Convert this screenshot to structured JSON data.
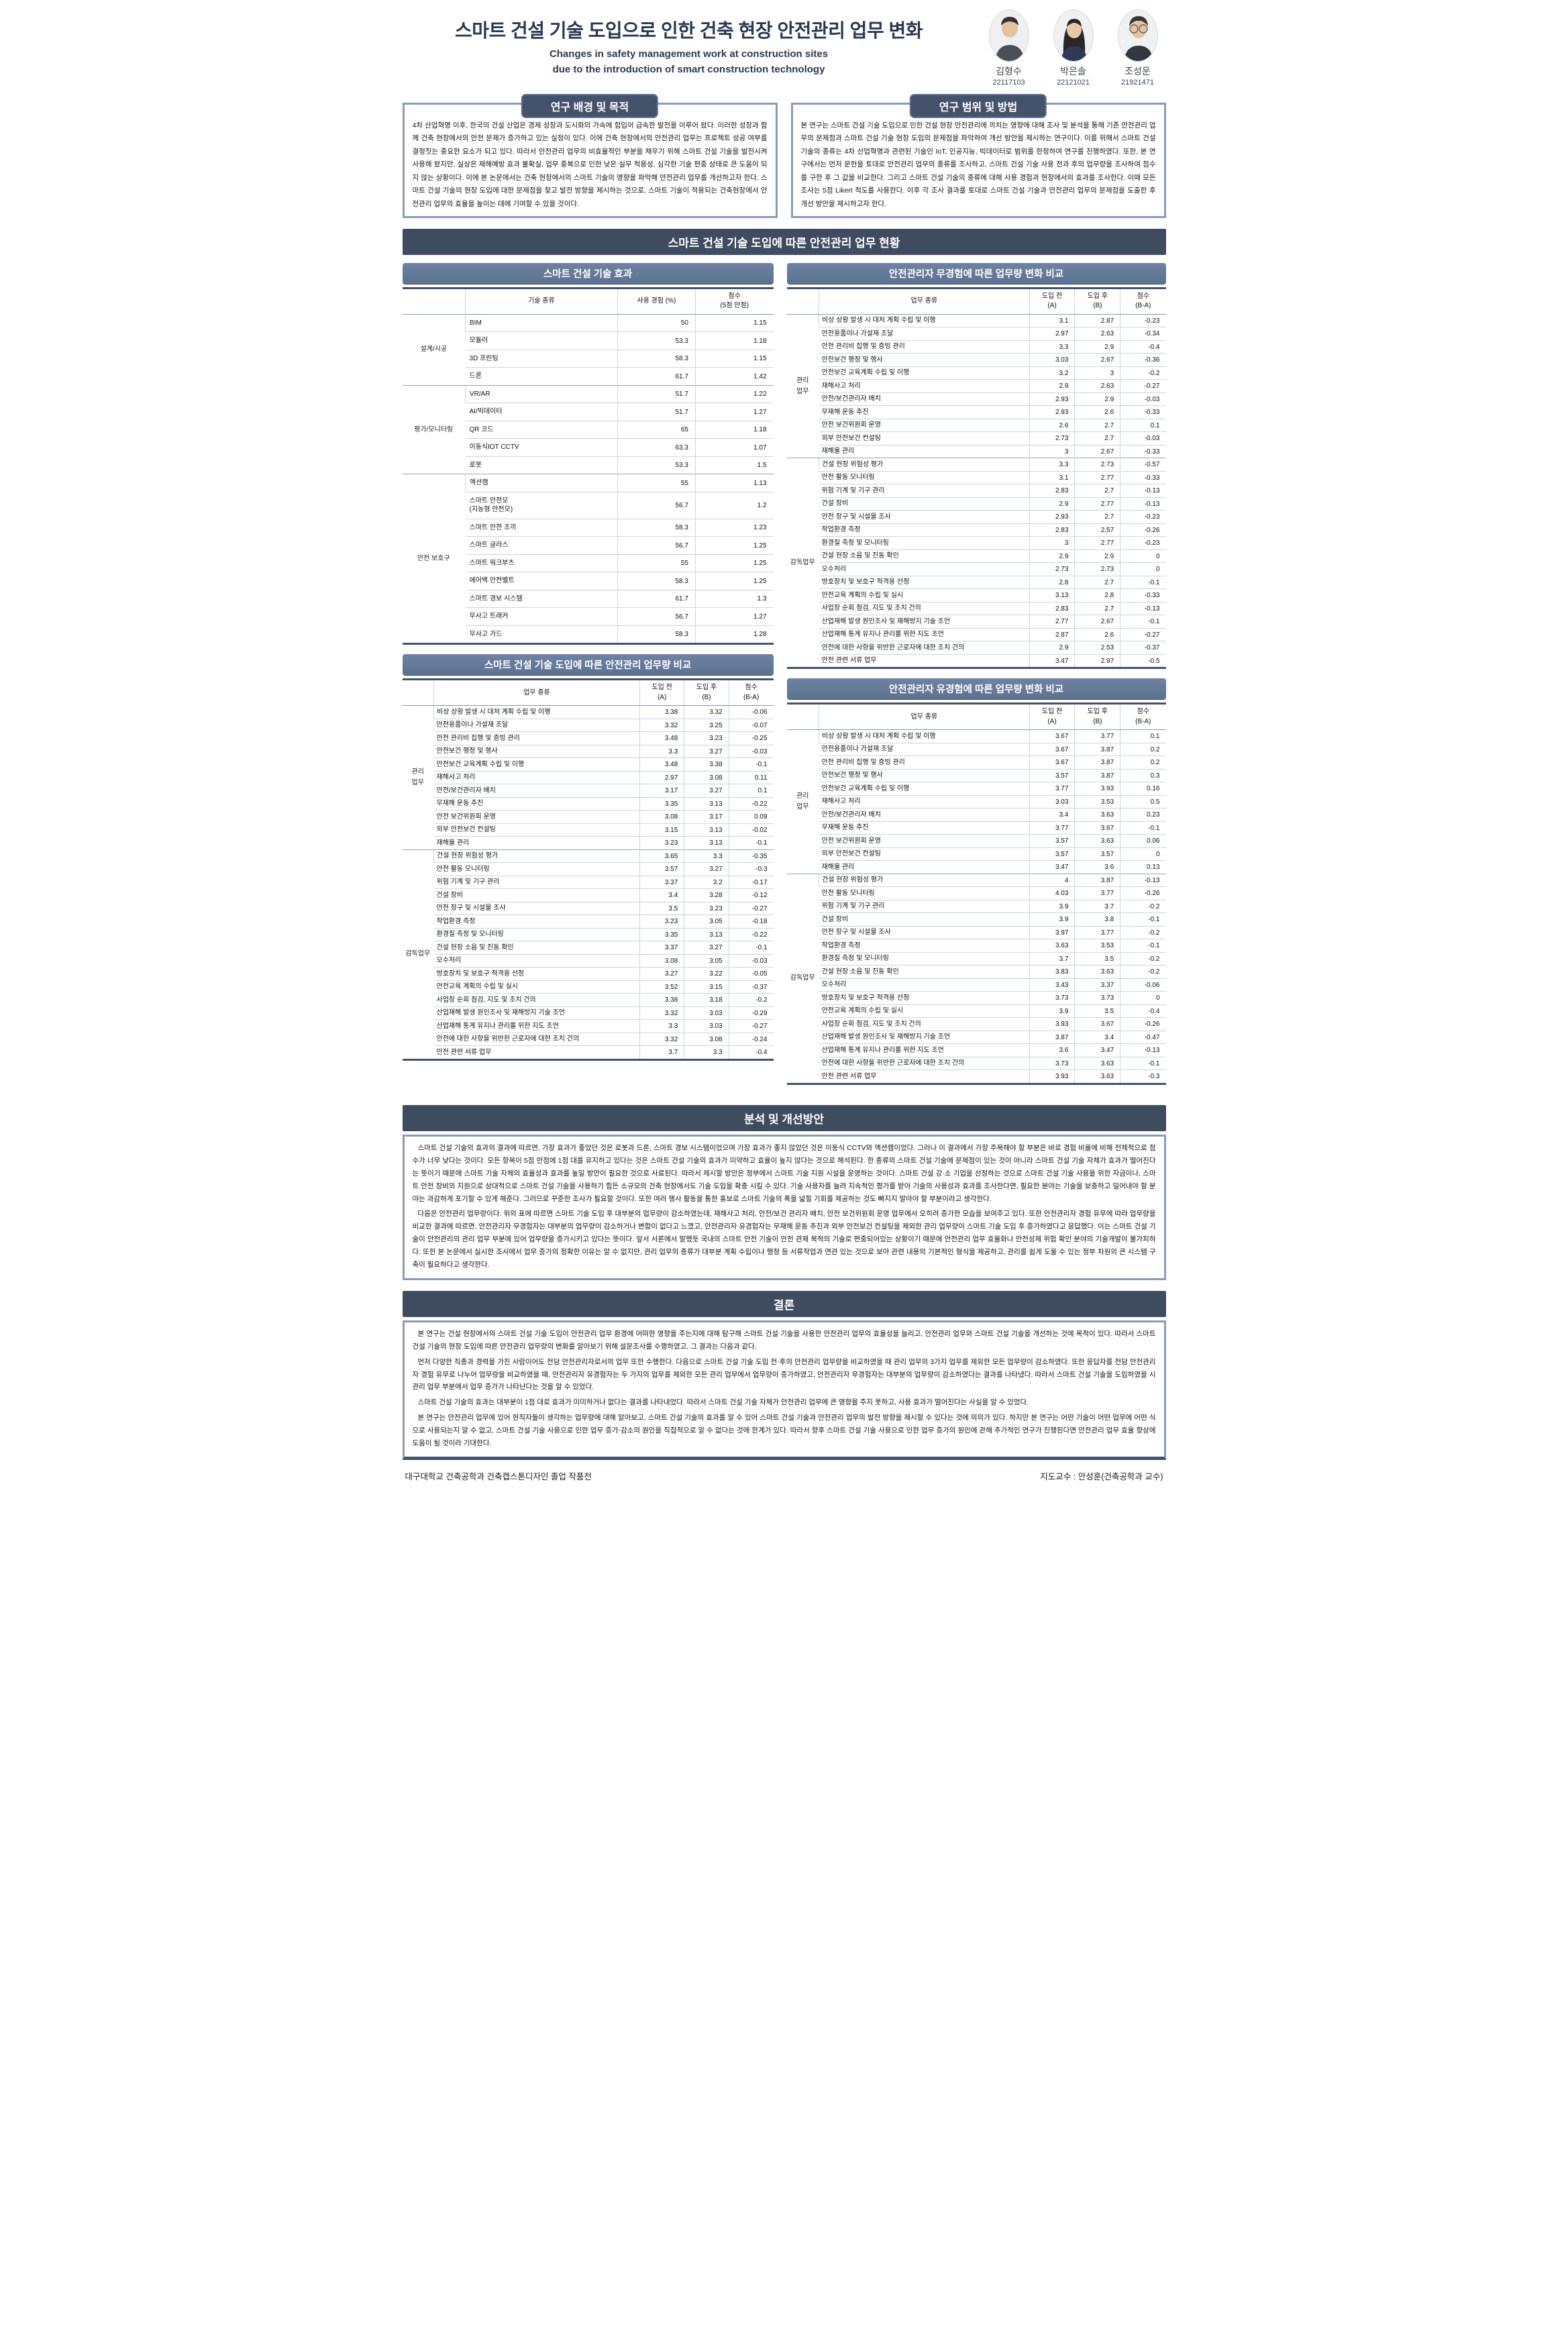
{
  "colors": {
    "banner_bg": "#3f4c60",
    "table_title_bg": "#5d7191",
    "tab_bg": "#44536b",
    "box_border": "#8a9cb5",
    "thick_line": "#44536b",
    "row_line": "#ccd5df",
    "title_text": "#2b3a50"
  },
  "header": {
    "title_ko": "스마트 건설 기술 도입으로 인한 건축 현장 안전관리 업무 변화",
    "title_en_line1": "Changes in safety management work at construction sites",
    "title_en_line2": "due to the introduction of smart construction technology",
    "authors": [
      {
        "name": "김형수",
        "id": "22117103"
      },
      {
        "name": "박은솔",
        "id": "22121021"
      },
      {
        "name": "조성운",
        "id": "21921471"
      }
    ]
  },
  "sections": {
    "background": {
      "title": "연구 배경 및 목적",
      "body": "4차 산업혁명 이후, 한국의 건설 산업은 경제 성장과 도시화의 가속에 힘입어 급속한 발전을 이루어 왔다. 이러한 성장과 함께 건축 현장에서의 안전 문제가 증가하고 있는 실정이 있다. 이에 건축 현장에서의 안전관리 업무는 프로젝트 성공 여부를 결정짓는 중요한 요소가 되고 있다. 따라서 안전관리 업무의 비효율적인 부분을 채우기 위해 스마트 건설 기술을 발전시켜 사용해 왔지만, 실상은 재해예방 효과 불확실, 업무 중복으로 인한 낮은 실무 적용성, 심각한 기술 편중 상태로 큰 도움이 되지 않는 상황이다. 이에 본 논문에서는 건축 현장에서의 스마트 기술의 영향을 파악해 안전관리 업무를 개선하고자 한다. 스마트 건설 기술의 현장 도입에 대한 문제점을 찾고 발전 방향을 제시하는 것으로, 스마트 기술이 적용되는 건축현장에서 안전관리 업무의 효율을 높이는 데에 기여할 수 있을 것이다."
    },
    "scope": {
      "title": "연구 범위 및 방법",
      "body": "본 연구는 스마트 건설 기술 도입으로 인한 건설 현장 안전관리에 끼치는 영향에 대해 조사 및 분석을 통해 기존 안전관리 업무의 문제점과 스마트 건설 기술 현장 도입의 문제점을 파악하여 개선 방안을 제시하는 연구이다. 이를 위해서 스마트 건설 기술의 종류는 4차 산업혁명과 관련된 기술인 IoT, 인공지능, 빅데이터로 범위를 한정하여 연구를 진행하였다. 또한, 본 연구에서는 먼저 문헌을 토대로 안전관리 업무의 종류를 조사하고, 스마트 건설 기술 사용 전과 후의 업무량을 조사하여 점수를 구한 후 그 값을 비교한다. 그리고 스마트 건설 기술의 종류에 대해 사용 경험과 현장에서의 효과를 조사한다. 이때 모든 조사는 5점 Likert 척도를 사용한다. 이후 각 조사 결과를 토대로 스마트 건설 기술과 안전관리 업무의 문제점을 도출한 후 개선 방안을 제시하고자 한다."
    },
    "status_banner": "스마트 건설 기술 도입에 따른 안전관리 업무 현황",
    "analysis": {
      "title": "분석 및 개선방안",
      "paragraphs": [
        "스마트 건설 기술의 효과의 결과에 따르면, 가장 효과가 좋았던 것은 로봇과 드론, 스마트 경보 시스템이었으며 가장 효과가 좋지 않았던 것은 이동식 CCTV와 액션캠이었다. 그러나 이 결과에서 가장 주목해야 할 부분은 바로 경험 비율에 비해 전체적으로 점수가 너무 낮다는 것이다. 모든 항목이 5점 만점에 1점 대를 유지하고 있다는 것은 스마트 건설 기술의 효과가 미약하고 효율이 높지 않다는 것으로 해석된다. 한 종류의 스마트 건설 기술에 문제점이 있는 것이 아니라 스마트 건설 기술 자체가 효과가 떨어진다는 뜻이기 때문에 스마트 기술 자체의 효율성과 효과를 높일 방안이 필요한 것으로 사료된다. 따라서 제시할 방안은 정부에서 스마트 기술 지원 시설을 운영하는 것이다. 스마트 건설 강·소 기업을 선정하는 것으로 스마트 건설 기술 사용을 위한 자금이나, 스마트 안전 장비의 지원으로 상대적으로 스마트 건설 기술을 사용하기 힘든 소규모의 건축 현장에서도 기술 도입을 확충 시킬 수 있다. 기술 사용자를 늘려 지속적인 평가를 받아 기술의 사용성과 효과를 조사한다면, 필요한 분야는 기술을 보충하고 덜어내야 할 분야는 과감하게 포기할 수 있게 해준다. 그러므로 꾸준한 조사가 필요할 것이다. 또한 여러 행사 활동을 통한 홍보로 스마트 기술의 폭을 넓힐 기회를 제공하는 것도 빠지지 말아야 할 부분이라고 생각한다.",
        "다음은 안전관리 업무량이다. 위의 표에 따르면 스마트 기술 도입 후 대부분의 업무량이 감소하였는데, 재해사고 처리, 안전/보건 관리자 배치, 안전 보건위원회 운영 업무에서 오히려 증가한 모습을 보여주고 있다. 또한 안전관리자 경험 유무에 따라 업무량을 비교한 결과에 따르면, 안전관리자 무경험자는 대부분의 업무량이 감소하거나 변함이 없다고 느꼈고, 안전관리자 유경험자는 무재해 운동 추진과 외부 안전보건 컨설팅을 제외한 관리 업무량이 스마트 기술 도입 후 증가하였다고 응답했다. 이는 스마트 건설 기술이 안전관리의 관리 업무 부분에 있어 업무량을 증가시키고 있다는 뜻이다. 앞서 서론에서 말했듯 국내의 스마트 안전 기술이 안전 관제 목적의 기술로 편중되어있는 상황이기 때문에 안전관리 업무 효율화나 안전성제 위험 확인 분야의 기술개발이 불가피하다. 또한 본 논문에서 실시한 조사에서 업무 증가의 정확한 이유는 알 수 없지만, 관리 업무의 종류가 대부분 계획 수립이나 행정 등 서류작업과 연관 있는 것으로 보아 관련 내용의 기본적인 형식을 제공하고, 관리를 쉽게 도울 수 있는 정부 차원의 큰 시스템 구축이 필요하다고 생각한다."
      ]
    },
    "conclusion": {
      "title": "결론",
      "paragraphs": [
        "본 연구는 건설 현장에서의 스마트 건설 기술 도입이 안전관리 업무 환경에 어떠한 영향을 주는지에 대해 탐구해 스마트 건설 기술을 사용한 안전관리 업무의 효율성을 늘리고, 안전관리 업무와 스마트 건설 기술을 개선하는 것에 목적이 있다. 따라서 스마트 건설 기술의 현장 도입에 따른 안전관리 업무량의 변화를 알아보기 위해 설문조사를 수행하였고, 그 결과는 다음과 같다.",
        "먼저 다양한 직종과 경력을 가진 사람이어도 전담 안전관리자로서의 업무 또한 수행한다. 다음으로 스마트 건설 기술 도입 전·후의 안전관리 업무량을 비교하였을 때 관리 업무의 3가지 업무를 제외한 모든 업무량이 감소하였다. 또한 응답자를 전담 안전관리자 경험 유무로 나누어 업무량을 비교하였을 때, 안전관리자 유경험자는 두 가지의 업무를 제외한 모든 관리 업무에서 업무량이 증가하였고, 안전관리자 무경험자는 대부분의 업무량이 감소하였다는 결과를 나타냈다. 따라서 스마트 건설 기술을 도입하였을 시 관리 업무 부분에서 업무 증가가 나타난다는 것을 알 수 있었다.",
        "스마트 건설 기술의 효과는 대부분이 1점 대로 효과가 미미하거나 없다는 결과를 나타내었다. 따라서 스마트 건설 기술 자체가 안전관리 업무에 큰 영향을 주지 못하고, 사용 효과가 떨어진다는 사실을 알 수 있었다.",
        "본 연구는 안전관리 업무에 있어 현직자들이 생각하는 업무량에 대해 알아보고, 스마트 건설 기술의 효과를 알 수 있어 스마트 건설 기술과 안전관리 업무의 발전 방향을 제시할 수 있다는 것에 의의가 있다. 하지만 본 연구는 어떤 기술이 어떤 업무에 어떤 식으로 사용되는지 알 수 없고, 스마트 건설 기술 사용으로 인한 업무 증가·감소의 원인을 직접적으로 알 수 없다는 것에 한계가 있다. 따라서 향후 스마트 건설 기술 사용으로 인한 업무 증가의 원인에 관해 추가적인 연구가 진행된다면 안전관리 업무 효율 향상에 도움이 될 것이라 기대한다."
      ]
    }
  },
  "tables": {
    "effect": {
      "title": "스마트 건설 기술 효과",
      "columns": [
        "기술 종류",
        "사용 경험 (%)",
        "점수\n(5점 만점)"
      ],
      "col_widths": [
        "17%",
        "41%",
        "21%",
        "21%"
      ],
      "groups": [
        {
          "label": "설계/시공",
          "rows": [
            [
              "BIM",
              "50",
              "1.15"
            ],
            [
              "모듈러",
              "53.3",
              "1.18"
            ],
            [
              "3D 프린팅",
              "58.3",
              "1.15"
            ],
            [
              "드론",
              "61.7",
              "1.42"
            ]
          ]
        },
        {
          "label": "평가/모니터링",
          "rows": [
            [
              "VR/AR",
              "51.7",
              "1.22"
            ],
            [
              "AI/빅데이터",
              "51.7",
              "1.27"
            ],
            [
              "QR 코드",
              "65",
              "1.18"
            ],
            [
              "이동식IOT CCTV",
              "63.3",
              "1.07"
            ],
            [
              "로봇",
              "53.3",
              "1.5"
            ]
          ]
        },
        {
          "label": "안전 보호구",
          "rows": [
            [
              "액션캠",
              "55",
              "1.13"
            ],
            [
              "스마트 안전모\n(지능형 안전모)",
              "56.7",
              "1.2"
            ],
            [
              "스마트 안전 조끼",
              "58.3",
              "1.23"
            ],
            [
              "스마트 글라스",
              "56.7",
              "1.25"
            ],
            [
              "스마트 워크부츠",
              "55",
              "1.25"
            ],
            [
              "에어백 안전벨트",
              "58.3",
              "1.25"
            ],
            [
              "스마트 경보 시스템",
              "61.7",
              "1.3"
            ],
            [
              "무사고 트래커",
              "56.7",
              "1.27"
            ],
            [
              "무사고 가드",
              "58.3",
              "1.28"
            ]
          ]
        }
      ]
    },
    "workload": {
      "title": "스마트 건설 기술 도입에 따른 안전관리 업무량 비교",
      "columns": [
        "업무 종류",
        "도입 전\n(A)",
        "도입 후\n(B)",
        "점수\n(B-A)"
      ],
      "col_widths": [
        "8.5%",
        "55.5%",
        "12%",
        "12%",
        "12%"
      ],
      "groups": [
        {
          "label": "관리\n업무",
          "rows": [
            [
              "비상 상황 발생 시 대처 계획 수립 및 이행",
              "3.38",
              "3.32",
              "-0.06"
            ],
            [
              "안전용품이나 가설재 조달",
              "3.32",
              "3.25",
              "-0.07"
            ],
            [
              "안전 관리비 집행 및 증빙 관리",
              "3.48",
              "3.23",
              "-0.25"
            ],
            [
              "안전보건 행정 및 행사",
              "3.3",
              "3.27",
              "-0.03"
            ],
            [
              "안전보건 교육계획 수립 및 이행",
              "3.48",
              "3.38",
              "-0.1"
            ],
            [
              "재해사고 처리",
              "2.97",
              "3.08",
              "0.11"
            ],
            [
              "안전/보건관리자 배치",
              "3.17",
              "3.27",
              "0.1"
            ],
            [
              "무재해 운동 추진",
              "3.35",
              "3.13",
              "-0.22"
            ],
            [
              "안전 보건위원회 운영",
              "3.08",
              "3.17",
              "0.09"
            ],
            [
              "외부 안전보건 컨설팅",
              "3.15",
              "3.13",
              "-0.02"
            ],
            [
              "재해율 관리",
              "3.23",
              "3.13",
              "-0.1"
            ]
          ]
        },
        {
          "label": "감독업무",
          "rows": [
            [
              "건설 현장 위험성 평가",
              "3.65",
              "3.3",
              "-0.35"
            ],
            [
              "안전 활동 모니터링",
              "3.57",
              "3.27",
              "-0.3"
            ],
            [
              "위험 기계 및 기구 관리",
              "3.37",
              "3.2",
              "-0.17"
            ],
            [
              "건설 장비",
              "3.4",
              "3.28",
              "-0.12"
            ],
            [
              "안전 장구 및 시설물 조사",
              "3.5",
              "3.23",
              "-0.27"
            ],
            [
              "작업환경 측정",
              "3.23",
              "3.05",
              "-0.18"
            ],
            [
              "환경질 측정 및 모니터링",
              "3.35",
              "3.13",
              "-0.22"
            ],
            [
              "건설 현장 소음 및 진동 확인",
              "3.37",
              "3.27",
              "-0.1"
            ],
            [
              "오수처리",
              "3.08",
              "3.05",
              "-0.03"
            ],
            [
              "방호장치 및 보호구 적격용 선정",
              "3.27",
              "3.22",
              "-0.05"
            ],
            [
              "안전교육 계획의 수립 및 실시",
              "3.52",
              "3.15",
              "-0.37"
            ],
            [
              "사업장 순회 점검, 지도 및 조치 건의",
              "3.38",
              "3.18",
              "-0.2"
            ],
            [
              "산업재해 발생 원인조사 및 재해방지 기술 조언",
              "3.32",
              "3.03",
              "-0.29"
            ],
            [
              "산업재해 통계 유지나 관리를 위한 지도 조언",
              "3.3",
              "3.03",
              "-0.27"
            ],
            [
              "안전에 대한 사항을 위반한 근로자에 대한 조치 건의",
              "3.32",
              "3.08",
              "-0.24"
            ],
            [
              "안전 관련 서류 업무",
              "3.7",
              "3.3",
              "-0.4"
            ]
          ]
        }
      ]
    },
    "no_experience": {
      "title": "안전관리자 무경험에 따른 업무량 변화 비교",
      "columns": [
        "업무 종류",
        "도입 전\n(A)",
        "도입 후\n(B)",
        "점수\n(B-A)"
      ],
      "col_widths": [
        "8.5%",
        "55.5%",
        "12%",
        "12%",
        "12%"
      ],
      "groups": [
        {
          "label": "관리\n업무",
          "rows": [
            [
              "비상 상황 발생 시 대처 계획 수립 및 이행",
              "3.1",
              "2.87",
              "-0.23"
            ],
            [
              "안전용품이나 가설재 조달",
              "2.97",
              "2.63",
              "-0.34"
            ],
            [
              "안전 관리비 집행 및 증빙 관리",
              "3.3",
              "2.9",
              "-0.4"
            ],
            [
              "안전보건 행정 및 행사",
              "3.03",
              "2.67",
              "-0.36"
            ],
            [
              "안전보건 교육계획 수립 및 이행",
              "3.2",
              "3",
              "-0.2"
            ],
            [
              "재해사고 처리",
              "2.9",
              "2.63",
              "-0.27"
            ],
            [
              "안전/보건관리자 배치",
              "2.93",
              "2.9",
              "-0.03"
            ],
            [
              "무재해 운동 추진",
              "2.93",
              "2.6",
              "-0.33"
            ],
            [
              "안전 보건위원회 운영",
              "2.6",
              "2.7",
              "0.1"
            ],
            [
              "외부 안전보건 컨설팅",
              "2.73",
              "2.7",
              "-0.03"
            ],
            [
              "재해율 관리",
              "3",
              "2.67",
              "-0.33"
            ]
          ]
        },
        {
          "label": "감독업무",
          "rows": [
            [
              "건설 현장 위험성 평가",
              "3.3",
              "2.73",
              "-0.57"
            ],
            [
              "안전 활동 모니터링",
              "3.1",
              "2.77",
              "-0.33"
            ],
            [
              "위험 기계 및 기구 관리",
              "2.83",
              "2.7",
              "-0.13"
            ],
            [
              "건설 장비",
              "2.9",
              "2.77",
              "-0.13"
            ],
            [
              "안전 장구 및 시설물 조사",
              "2.93",
              "2.7",
              "-0.23"
            ],
            [
              "작업환경 측정",
              "2.83",
              "2.57",
              "-0.26"
            ],
            [
              "환경질 측정 및 모니터링",
              "3",
              "2.77",
              "-0.23"
            ],
            [
              "건설 현장 소음 및 진동 확인",
              "2.9",
              "2.9",
              "0"
            ],
            [
              "오수처리",
              "2.73",
              "2.73",
              "0"
            ],
            [
              "방호장치 및 보호구 적격용 선정",
              "2.8",
              "2.7",
              "-0.1"
            ],
            [
              "안전교육 계획의 수립 및 실시",
              "3.13",
              "2.8",
              "-0.33"
            ],
            [
              "사업장 순회 점검, 지도 및 조치 건의",
              "2.83",
              "2.7",
              "-0.13"
            ],
            [
              "산업재해 발생 원인조사 및 재해방지 기술 조언",
              "2.77",
              "2.67",
              "-0.1"
            ],
            [
              "산업재해 통계 유지나 관리를 위한 지도 조언",
              "2.87",
              "2.6",
              "-0.27"
            ],
            [
              "안전에 대한 사항을 위반한 근로자에 대한 조치 건의",
              "2.9",
              "2.53",
              "-0.37"
            ],
            [
              "안전 관련 서류 업무",
              "3.47",
              "2.97",
              "-0.5"
            ]
          ]
        }
      ]
    },
    "experience": {
      "title": "안전관리자 유경험에 따른 업무량 변화 비교",
      "columns": [
        "업무 종류",
        "도입 전\n(A)",
        "도입 후\n(B)",
        "점수\n(B-A)"
      ],
      "col_widths": [
        "8.5%",
        "55.5%",
        "12%",
        "12%",
        "12%"
      ],
      "groups": [
        {
          "label": "관리\n업무",
          "rows": [
            [
              "비상 상황 발생 시 대처 계획 수립 및 이행",
              "3.67",
              "3.77",
              "0.1"
            ],
            [
              "안전용품이나 가설재 조달",
              "3.67",
              "3.87",
              "0.2"
            ],
            [
              "안전 관리비 집행 및 증빙 관리",
              "3.67",
              "3.87",
              "0.2"
            ],
            [
              "안전보건 행정 및 행사",
              "3.57",
              "3.87",
              "0.3"
            ],
            [
              "안전보건 교육계획 수립 및 이행",
              "3.77",
              "3.93",
              "0.16"
            ],
            [
              "재해사고 처리",
              "3.03",
              "3.53",
              "0.5"
            ],
            [
              "안전/보건관리자 배치",
              "3.4",
              "3.63",
              "0.23"
            ],
            [
              "무재해 운동 추진",
              "3.77",
              "3.67",
              "-0.1"
            ],
            [
              "안전 보건위원회 운영",
              "3.57",
              "3.63",
              "0.06"
            ],
            [
              "외부 안전보건 컨설팅",
              "3.57",
              "3.57",
              "0"
            ],
            [
              "재해율 관리",
              "3.47",
              "3.6",
              "0.13"
            ]
          ]
        },
        {
          "label": "감독업무",
          "rows": [
            [
              "건설 현장 위험성 평가",
              "4",
              "3.87",
              "-0.13"
            ],
            [
              "안전 활동 모니터링",
              "4.03",
              "3.77",
              "-0.26"
            ],
            [
              "위험 기계 및 기구 관리",
              "3.9",
              "3.7",
              "-0.2"
            ],
            [
              "건설 장비",
              "3.9",
              "3.8",
              "-0.1"
            ],
            [
              "안전 장구 및 시설물 조사",
              "3.97",
              "3.77",
              "-0.2"
            ],
            [
              "작업환경 측정",
              "3.63",
              "3.53",
              "-0.1"
            ],
            [
              "환경질 측정 및 모니터링",
              "3.7",
              "3.5",
              "-0.2"
            ],
            [
              "건설 현장 소음 및 진동 확인",
              "3.83",
              "3.63",
              "-0.2"
            ],
            [
              "오수처리",
              "3.43",
              "3.37",
              "-0.06"
            ],
            [
              "방호장치 및 보호구 적격용 선정",
              "3.73",
              "3.73",
              "0"
            ],
            [
              "안전교육 계획의 수립 및 실시",
              "3.9",
              "3.5",
              "-0.4"
            ],
            [
              "사업장 순회 점검, 지도 및 조치 건의",
              "3.93",
              "3.67",
              "-0.26"
            ],
            [
              "산업재해 발생 원인조사 및 재해방지 기술 조언",
              "3.87",
              "3.4",
              "-0.47"
            ],
            [
              "산업재해 통계 유지나 관리를 위한 지도 조언",
              "3.6",
              "3.47",
              "-0.13"
            ],
            [
              "안전에 대한 사항을 위반한 근로자에 대한 조치 건의",
              "3.73",
              "3.63",
              "-0.1"
            ],
            [
              "안전 관련 서류 업무",
              "3.93",
              "3.63",
              "-0.3"
            ]
          ]
        }
      ]
    }
  },
  "footer": {
    "left": "대구대학교 건축공학과 건축캡스톤디자인 졸업 작품전",
    "right": "지도교수 : 안성훈(건축공학과 교수)"
  }
}
